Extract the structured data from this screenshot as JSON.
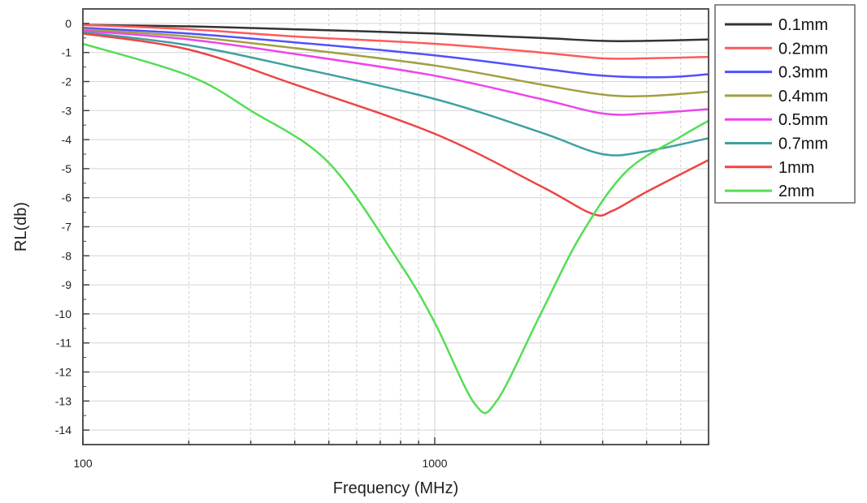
{
  "chart_data": {
    "type": "line",
    "xlabel": "Frequency (MHz)",
    "ylabel": "RL(db)",
    "x_scale": "log",
    "xlim": [
      100,
      6000
    ],
    "ylim": [
      -14.5,
      0.5
    ],
    "x_ticks": [
      {
        "value": 100,
        "label": "100"
      },
      {
        "value": 1000,
        "label": "1000"
      }
    ],
    "y_ticks": [
      {
        "value": 0,
        "label": "0"
      },
      {
        "value": -1,
        "label": "-1"
      },
      {
        "value": -2,
        "label": "-2"
      },
      {
        "value": -3,
        "label": "-3"
      },
      {
        "value": -4,
        "label": "-4"
      },
      {
        "value": -5,
        "label": "-5"
      },
      {
        "value": -6,
        "label": "-6"
      },
      {
        "value": -7,
        "label": "-7"
      },
      {
        "value": -8,
        "label": "-8"
      },
      {
        "value": -9,
        "label": "-9"
      },
      {
        "value": -10,
        "label": "-10"
      },
      {
        "value": -11,
        "label": "-11"
      },
      {
        "value": -12,
        "label": "-12"
      },
      {
        "value": -13,
        "label": "-13"
      },
      {
        "value": -14,
        "label": "-14"
      }
    ],
    "grid": true,
    "legend_position": "outside-right",
    "series": [
      {
        "name": "0.1mm",
        "color": "#333333",
        "points": [
          [
            100,
            -0.05
          ],
          [
            200,
            -0.1
          ],
          [
            400,
            -0.2
          ],
          [
            1000,
            -0.35
          ],
          [
            2000,
            -0.5
          ],
          [
            3000,
            -0.6
          ],
          [
            4000,
            -0.6
          ],
          [
            6000,
            -0.55
          ]
        ]
      },
      {
        "name": "0.2mm",
        "color": "#ff5a5a",
        "points": [
          [
            100,
            -0.05
          ],
          [
            200,
            -0.2
          ],
          [
            400,
            -0.45
          ],
          [
            1000,
            -0.7
          ],
          [
            2000,
            -1.0
          ],
          [
            3000,
            -1.2
          ],
          [
            4000,
            -1.2
          ],
          [
            6000,
            -1.15
          ]
        ]
      },
      {
        "name": "0.3mm",
        "color": "#5050ff",
        "points": [
          [
            100,
            -0.15
          ],
          [
            200,
            -0.35
          ],
          [
            400,
            -0.65
          ],
          [
            1000,
            -1.1
          ],
          [
            2000,
            -1.55
          ],
          [
            3000,
            -1.8
          ],
          [
            4500,
            -1.85
          ],
          [
            6000,
            -1.75
          ]
        ]
      },
      {
        "name": "0.4mm",
        "color": "#a0a040",
        "points": [
          [
            100,
            -0.2
          ],
          [
            200,
            -0.45
          ],
          [
            400,
            -0.85
          ],
          [
            1000,
            -1.45
          ],
          [
            2000,
            -2.1
          ],
          [
            3000,
            -2.45
          ],
          [
            4000,
            -2.5
          ],
          [
            6000,
            -2.35
          ]
        ]
      },
      {
        "name": "0.5mm",
        "color": "#ee44ee",
        "points": [
          [
            100,
            -0.25
          ],
          [
            200,
            -0.55
          ],
          [
            400,
            -1.05
          ],
          [
            1000,
            -1.8
          ],
          [
            2000,
            -2.6
          ],
          [
            3000,
            -3.1
          ],
          [
            4000,
            -3.1
          ],
          [
            6000,
            -2.95
          ]
        ]
      },
      {
        "name": "0.7mm",
        "color": "#40a0a0",
        "points": [
          [
            100,
            -0.3
          ],
          [
            200,
            -0.75
          ],
          [
            400,
            -1.5
          ],
          [
            1000,
            -2.6
          ],
          [
            2000,
            -3.75
          ],
          [
            3000,
            -4.5
          ],
          [
            4000,
            -4.4
          ],
          [
            6000,
            -3.95
          ]
        ]
      },
      {
        "name": "1mm",
        "color": "#ee4444",
        "points": [
          [
            100,
            -0.35
          ],
          [
            200,
            -0.9
          ],
          [
            400,
            -2.1
          ],
          [
            1000,
            -3.8
          ],
          [
            2000,
            -5.6
          ],
          [
            2800,
            -6.55
          ],
          [
            3200,
            -6.45
          ],
          [
            4000,
            -5.8
          ],
          [
            6000,
            -4.7
          ]
        ]
      },
      {
        "name": "2mm",
        "color": "#55dd55",
        "points": [
          [
            100,
            -0.7
          ],
          [
            200,
            -1.8
          ],
          [
            300,
            -3.0
          ],
          [
            500,
            -4.8
          ],
          [
            800,
            -8.3
          ],
          [
            1000,
            -10.3
          ],
          [
            1300,
            -13.1
          ],
          [
            1500,
            -13.0
          ],
          [
            2000,
            -10.0
          ],
          [
            2600,
            -7.3
          ],
          [
            3500,
            -5.1
          ],
          [
            5000,
            -3.9
          ],
          [
            6000,
            -3.35
          ]
        ]
      }
    ]
  }
}
